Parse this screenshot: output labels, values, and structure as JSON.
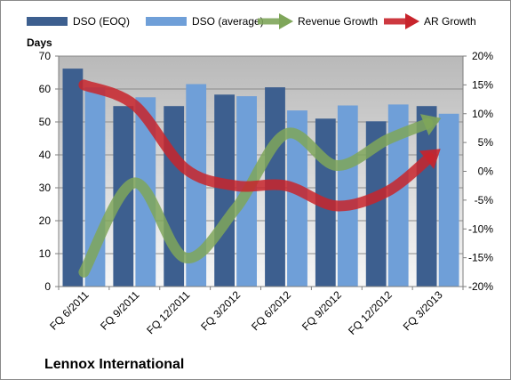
{
  "chart_data": {
    "type": "bar",
    "company": "Lennox International",
    "y_left_label": "Days",
    "categories": [
      "FQ 6/2011",
      "FQ 9/2011",
      "FQ 12/2011",
      "FQ 3/2012",
      "FQ 6/2012",
      "FQ 9/2012",
      "FQ 12/2012",
      "FQ 3/2013"
    ],
    "left_axis": {
      "min": 0,
      "max": 70,
      "ticks": [
        0,
        10,
        20,
        30,
        40,
        50,
        60,
        70
      ],
      "tick_labels": [
        "0",
        "10",
        "20",
        "30",
        "40",
        "50",
        "60",
        "70"
      ]
    },
    "right_axis": {
      "min": -20,
      "max": 20,
      "ticks": [
        -20,
        -15,
        -10,
        -5,
        0,
        5,
        10,
        15,
        20
      ],
      "tick_labels": [
        "-20%",
        "-15%",
        "-10%",
        "-5%",
        "0%",
        "5%",
        "10%",
        "15%",
        "20%"
      ]
    },
    "bar_series": [
      {
        "name": "DSO (EOQ)",
        "color": "#3d5f8f",
        "values": [
          66.2,
          54.8,
          54.8,
          58.3,
          60.5,
          51.0,
          50.2,
          54.8
        ]
      },
      {
        "name": "DSO (average)",
        "color": "#6f9fd8",
        "values": [
          60.5,
          57.5,
          61.5,
          57.8,
          53.5,
          55.0,
          55.3,
          52.5
        ]
      }
    ],
    "line_series": [
      {
        "name": "Revenue Growth",
        "color": "#7fa65a",
        "values": [
          -17.5,
          -2.0,
          -15.0,
          -6.5,
          6.5,
          1.0,
          5.5,
          9.0
        ]
      },
      {
        "name": "AR Growth",
        "color": "#c8242c",
        "values": [
          15.0,
          11.5,
          0.5,
          -2.5,
          -2.5,
          -6.0,
          -3.5,
          3.5
        ]
      }
    ],
    "grid": true,
    "legend_position": "top"
  }
}
